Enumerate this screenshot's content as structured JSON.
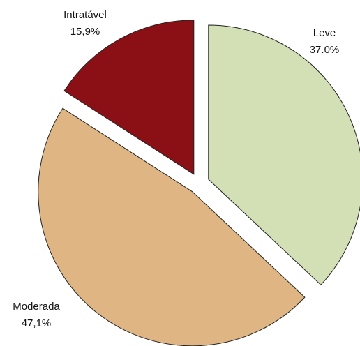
{
  "chart_data": {
    "type": "pie",
    "categories": [
      "Leve",
      "Moderada",
      "Intratável"
    ],
    "values": [
      37.0,
      47.1,
      15.9
    ],
    "value_labels": [
      "37.0%",
      "47,1%",
      "15,9%"
    ],
    "colors": [
      "#d3dfb4",
      "#dfb583",
      "#8b1016"
    ],
    "exploded": true
  }
}
